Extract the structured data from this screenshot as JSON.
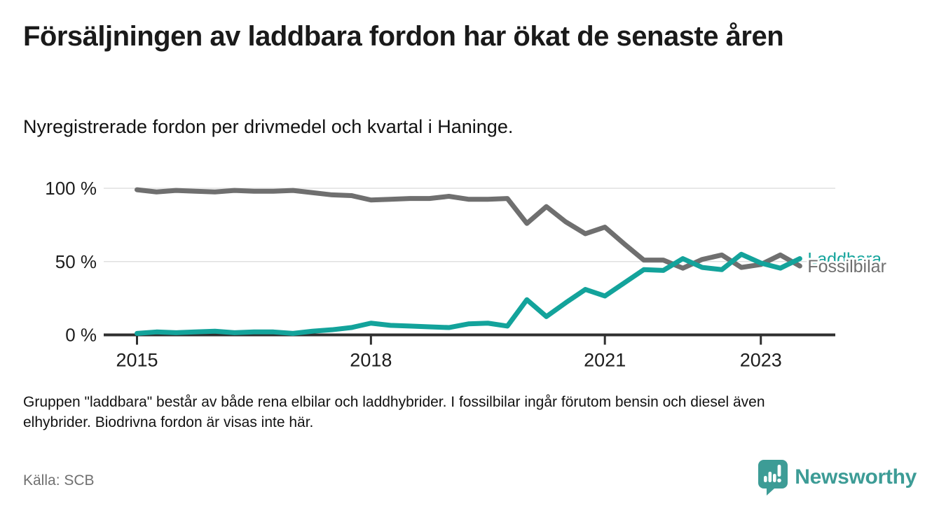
{
  "header": {
    "title": "Försäljningen av laddbara fordon har ökat de senaste åren",
    "subtitle": "Nyregistrerade fordon per drivmedel och kvartal i Haninge."
  },
  "chart_data": {
    "type": "line",
    "title": "Försäljningen av laddbara fordon har ökat de senaste åren",
    "subtitle": "Nyregistrerade fordon per drivmedel och kvartal i Haninge.",
    "unit": "%",
    "x": [
      "2015K1",
      "2015K2",
      "2015K3",
      "2015K4",
      "2016K1",
      "2016K2",
      "2016K3",
      "2016K4",
      "2017K1",
      "2017K2",
      "2017K3",
      "2017K4",
      "2018K1",
      "2018K2",
      "2018K3",
      "2018K4",
      "2019K1",
      "2019K2",
      "2019K3",
      "2019K4",
      "2020K1",
      "2020K2",
      "2020K3",
      "2020K4",
      "2021K1",
      "2021K2",
      "2021K3",
      "2021K4",
      "2022K1",
      "2022K2",
      "2022K3",
      "2022K4",
      "2023K1",
      "2023K2",
      "2023K3"
    ],
    "series": [
      {
        "name": "Fossilbilar",
        "color": "#6f6f6f",
        "values": [
          99,
          97.5,
          98.5,
          98,
          97.5,
          98.5,
          98,
          98,
          98.5,
          97,
          95.5,
          95,
          92,
          92.5,
          93,
          93,
          94.5,
          92.5,
          92.5,
          93,
          76,
          87.5,
          77,
          69,
          73.5,
          62,
          51,
          51,
          45.5,
          51.5,
          54.5,
          46,
          48,
          54.5,
          47
        ]
      },
      {
        "name": "Laddbara",
        "color": "#13a39b",
        "values": [
          1,
          2,
          1.5,
          2,
          2.5,
          1.5,
          2,
          2,
          1,
          2.5,
          3.5,
          5,
          8,
          6.5,
          6,
          5.5,
          5,
          7.5,
          8,
          6,
          24,
          12.5,
          22,
          31,
          26.5,
          35.5,
          44.5,
          44,
          52,
          46,
          44.5,
          55,
          49,
          45.5,
          52
        ]
      }
    ],
    "ylim": [
      0,
      100
    ],
    "yticks": [
      {
        "value": 0,
        "label": "0 %"
      },
      {
        "value": 50,
        "label": "50 %"
      },
      {
        "value": 100,
        "label": "100 %"
      }
    ],
    "xticks": [
      {
        "index": 0,
        "label": "2015"
      },
      {
        "index": 12,
        "label": "2018"
      },
      {
        "index": 24,
        "label": "2021"
      },
      {
        "index": 32,
        "label": "2023"
      }
    ],
    "grid": "horizontal-only",
    "legend_position": "line-end-labels"
  },
  "footnote": {
    "line1": "Gruppen \"laddbara\" består av både rena elbilar och laddhybrider. I fossilbilar ingår förutom bensin och diesel även",
    "line2": "elhybrider. Biodrivna fordon är visas inte här."
  },
  "footer": {
    "source": "Källa: SCB",
    "brand": "Newsworthy",
    "brand_color": "#3d9c96"
  }
}
